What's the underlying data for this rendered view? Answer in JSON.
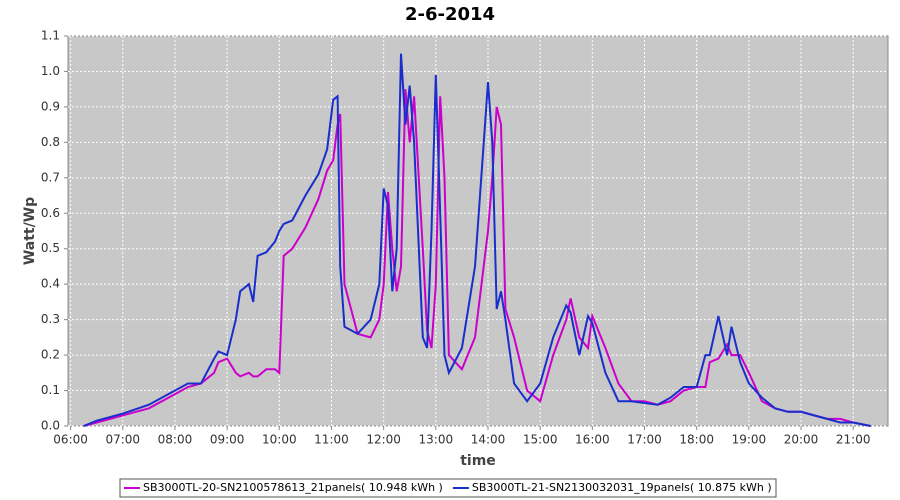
{
  "chart_data": {
    "type": "line",
    "title": "2-6-2014",
    "x_label": "time",
    "y_label": "Watt/Wp",
    "x": [
      "06:15",
      "06:30",
      "07:00",
      "07:30",
      "08:00",
      "08:15",
      "08:30",
      "08:45",
      "08:50",
      "09:00",
      "09:10",
      "09:15",
      "09:25",
      "09:30",
      "09:35",
      "09:45",
      "09:55",
      "10:00",
      "10:05",
      "10:15",
      "10:30",
      "10:45",
      "10:55",
      "11:02",
      "11:07",
      "11:10",
      "11:15",
      "11:30",
      "11:45",
      "11:55",
      "12:00",
      "12:05",
      "12:10",
      "12:15",
      "12:20",
      "12:25",
      "12:30",
      "12:35",
      "12:45",
      "12:50",
      "12:55",
      "13:00",
      "13:05",
      "13:10",
      "13:15",
      "13:30",
      "13:45",
      "14:00",
      "14:05",
      "14:10",
      "14:15",
      "14:20",
      "14:30",
      "14:45",
      "15:00",
      "15:15",
      "15:30",
      "15:35",
      "15:45",
      "15:55",
      "16:00",
      "16:15",
      "16:30",
      "16:45",
      "17:00",
      "17:15",
      "17:30",
      "17:45",
      "18:00",
      "18:10",
      "18:15",
      "18:25",
      "18:35",
      "18:40",
      "18:50",
      "19:00",
      "19:15",
      "19:30",
      "19:45",
      "20:00",
      "20:15",
      "20:30",
      "20:45",
      "21:00",
      "21:20"
    ],
    "series": [
      {
        "name": "SB3000TL-20-SN2100578613_21panels( 10.948 kWh )",
        "color": "#cc00cc",
        "values": [
          0,
          0.01,
          0.03,
          0.05,
          0.09,
          0.11,
          0.12,
          0.15,
          0.18,
          0.19,
          0.15,
          0.14,
          0.15,
          0.14,
          0.14,
          0.16,
          0.16,
          0.15,
          0.48,
          0.5,
          0.56,
          0.64,
          0.72,
          0.75,
          0.85,
          0.88,
          0.4,
          0.26,
          0.25,
          0.3,
          0.4,
          0.66,
          0.5,
          0.38,
          0.45,
          0.95,
          0.8,
          0.93,
          0.5,
          0.27,
          0.22,
          0.4,
          0.93,
          0.7,
          0.2,
          0.16,
          0.25,
          0.55,
          0.7,
          0.9,
          0.85,
          0.33,
          0.25,
          0.1,
          0.07,
          0.2,
          0.3,
          0.36,
          0.25,
          0.22,
          0.31,
          0.22,
          0.12,
          0.07,
          0.07,
          0.06,
          0.07,
          0.1,
          0.11,
          0.11,
          0.18,
          0.19,
          0.23,
          0.2,
          0.2,
          0.15,
          0.07,
          0.05,
          0.04,
          0.04,
          0.03,
          0.02,
          0.02,
          0.01,
          0
        ]
      },
      {
        "name": "SB3000TL-21-SN2130032031_19panels( 10.875 kWh )",
        "color": "#1a2ecc",
        "values": [
          0,
          0.015,
          0.035,
          0.06,
          0.1,
          0.12,
          0.12,
          0.19,
          0.21,
          0.2,
          0.3,
          0.38,
          0.4,
          0.35,
          0.48,
          0.49,
          0.52,
          0.55,
          0.57,
          0.58,
          0.65,
          0.71,
          0.78,
          0.92,
          0.93,
          0.45,
          0.28,
          0.26,
          0.3,
          0.4,
          0.67,
          0.62,
          0.38,
          0.5,
          1.05,
          0.85,
          0.96,
          0.8,
          0.25,
          0.22,
          0.55,
          0.99,
          0.6,
          0.2,
          0.15,
          0.22,
          0.45,
          0.97,
          0.8,
          0.33,
          0.38,
          0.3,
          0.12,
          0.07,
          0.12,
          0.25,
          0.34,
          0.32,
          0.2,
          0.31,
          0.29,
          0.15,
          0.07,
          0.07,
          0.065,
          0.06,
          0.08,
          0.11,
          0.11,
          0.2,
          0.2,
          0.31,
          0.2,
          0.28,
          0.18,
          0.12,
          0.08,
          0.05,
          0.04,
          0.04,
          0.03,
          0.02,
          0.01,
          0.01,
          0
        ]
      }
    ],
    "xlim": [
      "05:57",
      "21:40"
    ],
    "xticks": [
      "06:00",
      "07:00",
      "08:00",
      "09:00",
      "10:00",
      "11:00",
      "12:00",
      "13:00",
      "14:00",
      "15:00",
      "16:00",
      "17:00",
      "18:00",
      "19:00",
      "20:00",
      "21:00"
    ],
    "ylim": [
      0,
      1.1
    ],
    "yticks": [
      {
        "value": 0,
        "label": "0.0"
      },
      0.1,
      0.2,
      0.3,
      0.4,
      0.5,
      0.6,
      0.7,
      0.8,
      0.9,
      {
        "value": 1,
        "label": "1.0"
      },
      1.1
    ],
    "grid": true
  }
}
